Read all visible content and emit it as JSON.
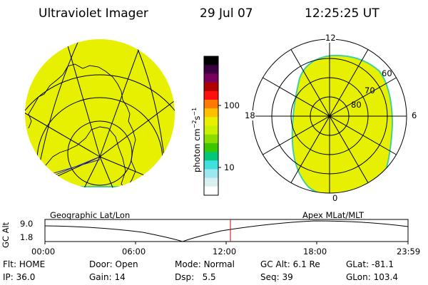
{
  "header": {
    "title": "Ultraviolet Imager",
    "date": "29 Jul 07",
    "time": "12:25:25 UT"
  },
  "colorbar": {
    "label_main": "photon cm",
    "label_exp1": "−2",
    "label_mid": "s",
    "label_exp2": "−1",
    "ticks": [
      "100",
      "10"
    ],
    "colors": [
      "#000000",
      "#3a0040",
      "#7a0060",
      "#b00000",
      "#ff1010",
      "#ff7a00",
      "#ffc000",
      "#e8f000",
      "#c8f000",
      "#8cdc00",
      "#3cc800",
      "#00c878",
      "#40e0e0",
      "#9ce8f0",
      "#d8f0f0",
      "#ffffff"
    ]
  },
  "left_map": {
    "label": "Geographic Lat/Lon",
    "fill_color": "#e6f000",
    "edge_color": "#40d0a0"
  },
  "right_map": {
    "label": "Apex MLat/MLT",
    "mlt_labels": {
      "top": "12",
      "left": "18",
      "right": "6",
      "bottom": "0"
    },
    "lat_labels": [
      "60",
      "70",
      "80"
    ]
  },
  "timeline": {
    "ylabel": "GC Alt",
    "y_ticks": [
      "9.0",
      "1.8"
    ],
    "x_ticks": [
      "00:00",
      "06:00",
      "12:00",
      "18:00",
      "23:59"
    ],
    "current_time_color": "#dd0000"
  },
  "status": {
    "row1": [
      {
        "label": "Flt:",
        "value": "HOME"
      },
      {
        "label": "Door:",
        "value": "Open"
      },
      {
        "label": "Mode:",
        "value": "Normal"
      },
      {
        "label": "GC Alt:",
        "value": "6.1 Re"
      },
      {
        "label": "GLat:",
        "value": "-81.1"
      }
    ],
    "row2": [
      {
        "label": "IP:",
        "value": "36.0"
      },
      {
        "label": "Gain:",
        "value": "14"
      },
      {
        "label": "Dsp:",
        "value": "5.5"
      },
      {
        "label": "Seq:",
        "value": "39"
      },
      {
        "label": "GLon:",
        "value": "103.4"
      }
    ]
  }
}
